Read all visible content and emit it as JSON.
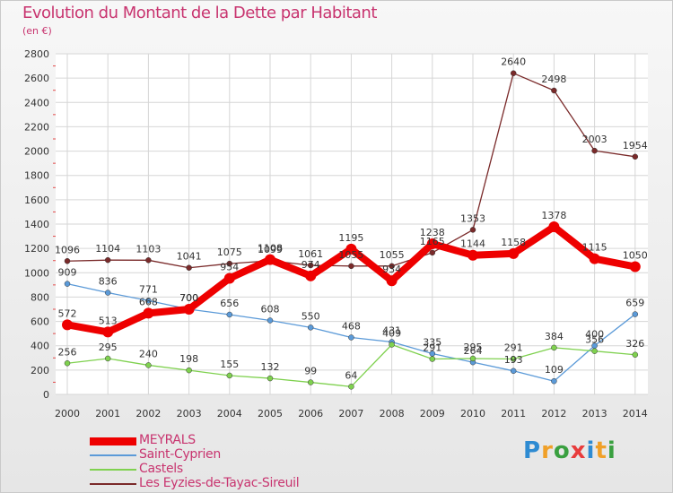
{
  "header": {
    "title": "Evolution du Montant de la Dette par Habitant",
    "subtitle": "(en €)"
  },
  "logo": {
    "text": "Proxiti",
    "letter_colors": [
      "#2e8bd2",
      "#f0a028",
      "#3aa040",
      "#e83c3c",
      "#2e8bd2",
      "#f0a028",
      "#3aa040"
    ]
  },
  "chart_data": {
    "type": "line",
    "title": "Evolution du Montant de la Dette par Habitant",
    "subtitle": "(en €)",
    "xlabel": "",
    "ylabel": "",
    "x": [
      "2000",
      "2001",
      "2002",
      "2003",
      "2004",
      "2005",
      "2006",
      "2007",
      "2008",
      "2009",
      "2010",
      "2011",
      "2012",
      "2013",
      "2014"
    ],
    "ylim": [
      0,
      2800
    ],
    "yticks": [
      0,
      200,
      400,
      600,
      800,
      1000,
      1200,
      1400,
      1600,
      1800,
      2000,
      2200,
      2400,
      2600,
      2800
    ],
    "grid": true,
    "legend_position": "bottom-left",
    "series": [
      {
        "name": "MEYRALS",
        "color": "#ee0000",
        "emphasis": true,
        "values": [
          572,
          513,
          668,
          700,
          954,
          1108,
          974,
          1195,
          934,
          1238,
          1144,
          1158,
          1378,
          1115,
          1050
        ],
        "labels": [
          "572",
          "513",
          "668",
          "700",
          "954",
          "1108",
          "974",
          "1195",
          "934",
          "1238",
          "1144",
          "1158",
          "1378",
          "1115",
          "1050"
        ]
      },
      {
        "name": "Saint-Cyprien",
        "color": "#5b9ad8",
        "values": [
          909,
          836,
          771,
          700,
          656,
          608,
          550,
          468,
          431,
          335,
          264,
          193,
          109,
          400,
          659
        ],
        "labels": [
          "909",
          "836",
          "771",
          "700",
          "656",
          "608",
          "550",
          "468",
          "431",
          "335",
          "264",
          "193",
          "109",
          "400",
          "659"
        ]
      },
      {
        "name": "Castels",
        "color": "#7fd14f",
        "values": [
          256,
          295,
          240,
          198,
          155,
          132,
          99,
          64,
          409,
          291,
          295,
          291,
          384,
          356,
          326
        ],
        "labels": [
          "256",
          "295",
          "240",
          "198",
          "155",
          "132",
          "99",
          "64",
          "409",
          "291",
          "295",
          "291",
          "384",
          "356",
          "326"
        ]
      },
      {
        "name": "Les Eyzies-de-Tayac-Sireuil",
        "color": "#7a2a2a",
        "values": [
          1096,
          1104,
          1103,
          1041,
          1075,
          1099,
          1061,
          1055,
          1055,
          1165,
          1353,
          2640,
          2498,
          2003,
          1954
        ],
        "labels": [
          "1096",
          "1104",
          "1103",
          "1041",
          "1075",
          "1099",
          "1061",
          "1055",
          "1055",
          "1165",
          "1353",
          "2640",
          "2498",
          "2003",
          "1954"
        ]
      }
    ]
  }
}
